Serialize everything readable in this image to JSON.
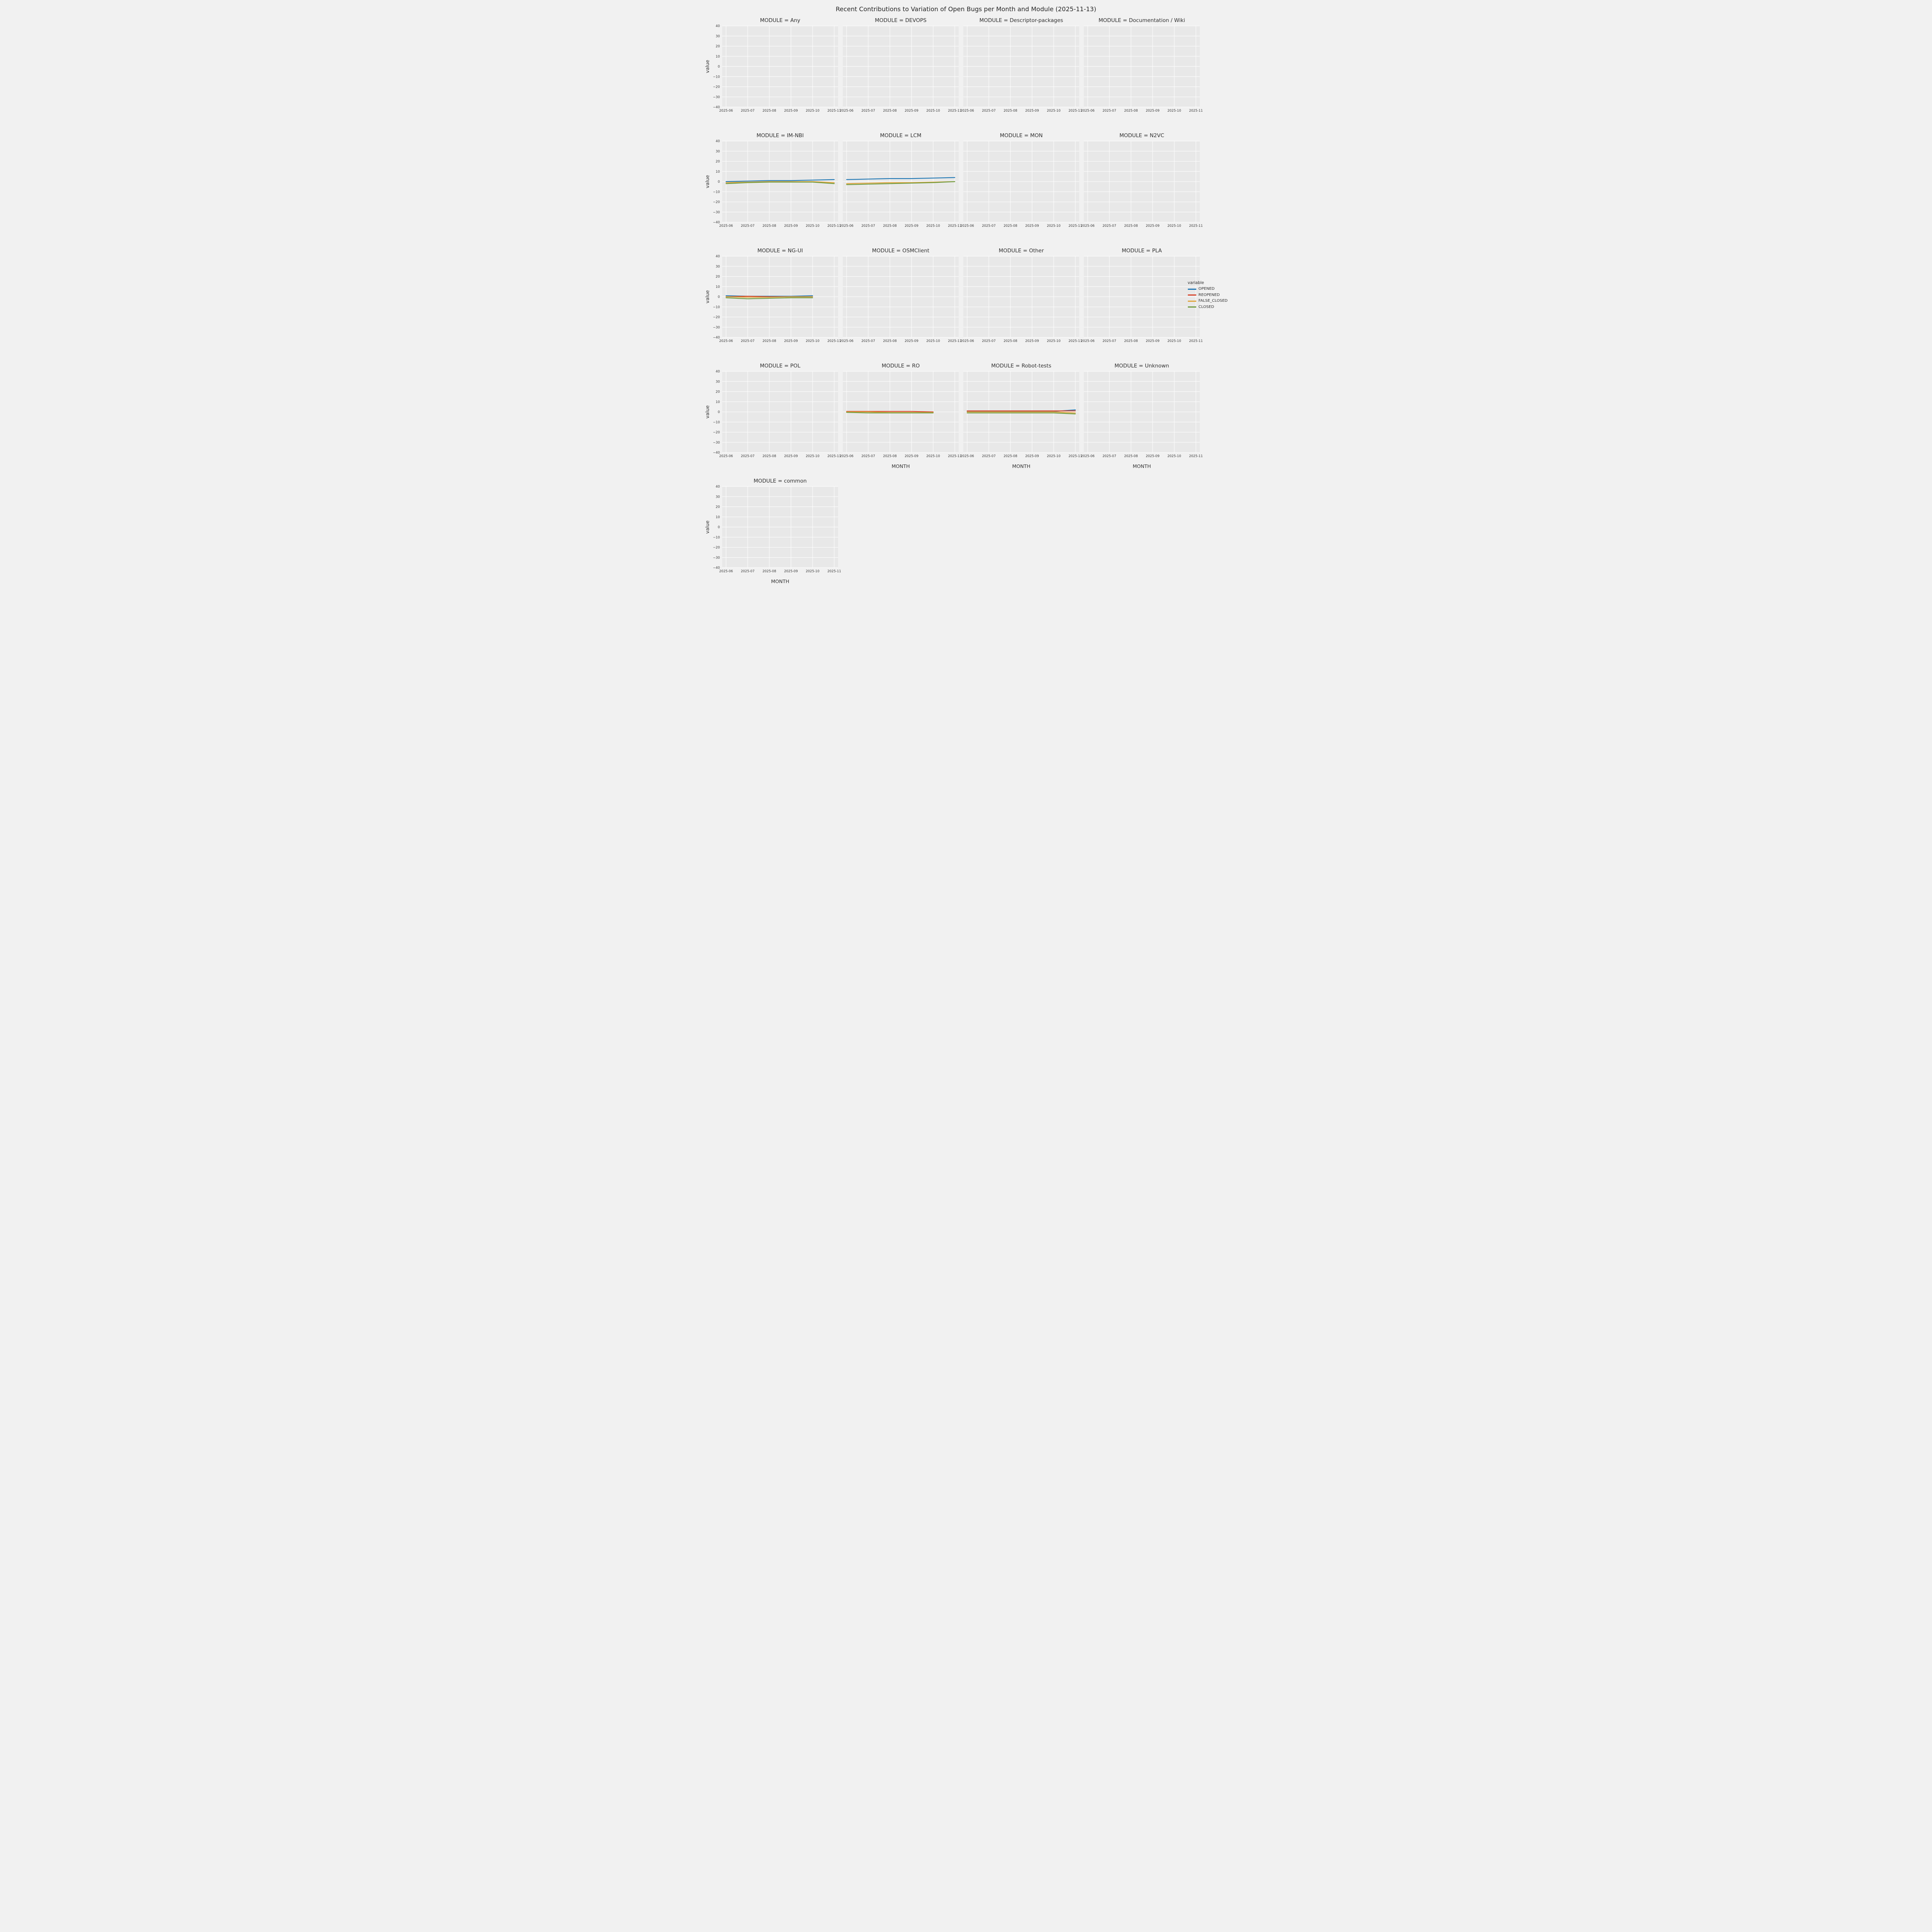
{
  "figure": {
    "background": "#f1f1f1",
    "panel_background": "#e8e8e8",
    "grid_color": "#ffffff"
  },
  "chart_data": {
    "type": "line",
    "title": "Recent Contributions to Variation of Open Bugs per Month and Module (2025-11-13)",
    "xlabel": "MONTH",
    "ylabel": "value",
    "x_ticks": [
      "2025-06",
      "2025-07",
      "2025-08",
      "2025-09",
      "2025-10",
      "2025-11"
    ],
    "ylim": [
      -40,
      40
    ],
    "y_ticks": [
      40,
      30,
      20,
      10,
      0,
      -10,
      -20,
      -30,
      -40
    ],
    "grid": true,
    "legend": {
      "title": "variable",
      "position": "right",
      "entries": [
        {
          "name": "OPENED",
          "color": "#1f77b4"
        },
        {
          "name": "REOPENED",
          "color": "#d7442c"
        },
        {
          "name": "FALSE_CLOSED",
          "color": "#e0a33b"
        },
        {
          "name": "CLOSED",
          "color": "#6f9b3f"
        }
      ]
    },
    "facets": [
      {
        "module": "Any",
        "title": "MODULE = Any",
        "series": []
      },
      {
        "module": "DEVOPS",
        "title": "MODULE = DEVOPS",
        "series": []
      },
      {
        "module": "Descriptor-packages",
        "title": "MODULE = Descriptor-packages",
        "series": []
      },
      {
        "module": "Documentation / Wiki",
        "title": "MODULE = Documentation / Wiki",
        "series": []
      },
      {
        "module": "IM-NBI",
        "title": "MODULE = IM-NBI",
        "series": [
          {
            "name": "OPENED",
            "x": [
              "2025-06",
              "2025-07",
              "2025-08",
              "2025-09",
              "2025-10",
              "2025-11"
            ],
            "y": [
              0,
              0.5,
              1,
              1,
              1.5,
              2
            ]
          },
          {
            "name": "FALSE_CLOSED",
            "x": [
              "2025-06",
              "2025-07",
              "2025-08",
              "2025-09",
              "2025-10",
              "2025-11"
            ],
            "y": [
              -1,
              -0.5,
              0,
              0,
              0,
              -1
            ]
          },
          {
            "name": "CLOSED",
            "x": [
              "2025-06",
              "2025-07",
              "2025-08",
              "2025-09",
              "2025-10",
              "2025-11"
            ],
            "y": [
              -2,
              -1,
              -0.5,
              -0.5,
              -0.5,
              -2
            ]
          }
        ]
      },
      {
        "module": "LCM",
        "title": "MODULE = LCM",
        "series": [
          {
            "name": "OPENED",
            "x": [
              "2025-06",
              "2025-07",
              "2025-08",
              "2025-09",
              "2025-10",
              "2025-11"
            ],
            "y": [
              2,
              2.5,
              3,
              3,
              3.5,
              4
            ]
          },
          {
            "name": "FALSE_CLOSED",
            "x": [
              "2025-06",
              "2025-07",
              "2025-08",
              "2025-09",
              "2025-10",
              "2025-11"
            ],
            "y": [
              -2,
              -1.5,
              -1,
              -1,
              -0.5,
              0
            ]
          },
          {
            "name": "CLOSED",
            "x": [
              "2025-06",
              "2025-07",
              "2025-08",
              "2025-09",
              "2025-10",
              "2025-11"
            ],
            "y": [
              -3,
              -2.5,
              -2,
              -1.5,
              -1,
              0
            ]
          }
        ]
      },
      {
        "module": "MON",
        "title": "MODULE = MON",
        "series": []
      },
      {
        "module": "N2VC",
        "title": "MODULE = N2VC",
        "series": []
      },
      {
        "module": "NG-UI",
        "title": "MODULE = NG-UI",
        "series": [
          {
            "name": "OPENED",
            "x": [
              "2025-06",
              "2025-07",
              "2025-08",
              "2025-09",
              "2025-10"
            ],
            "y": [
              1,
              0.5,
              0.5,
              0.5,
              1
            ]
          },
          {
            "name": "REOPENED",
            "x": [
              "2025-06",
              "2025-07",
              "2025-08",
              "2025-09",
              "2025-10"
            ],
            "y": [
              0,
              0.5,
              0,
              0,
              0
            ]
          },
          {
            "name": "FALSE_CLOSED",
            "x": [
              "2025-06",
              "2025-07",
              "2025-08",
              "2025-09",
              "2025-10"
            ],
            "y": [
              0,
              -0.5,
              -0.5,
              0,
              0
            ]
          },
          {
            "name": "CLOSED",
            "x": [
              "2025-06",
              "2025-07",
              "2025-08",
              "2025-09",
              "2025-10"
            ],
            "y": [
              -1,
              -2,
              -1.5,
              -1,
              -1
            ]
          }
        ]
      },
      {
        "module": "OSMClient",
        "title": "MODULE = OSMClient",
        "series": []
      },
      {
        "module": "Other",
        "title": "MODULE = Other",
        "series": []
      },
      {
        "module": "PLA",
        "title": "MODULE = PLA",
        "series": []
      },
      {
        "module": "POL",
        "title": "MODULE = POL",
        "series": []
      },
      {
        "module": "RO",
        "title": "MODULE = RO",
        "series": [
          {
            "name": "REOPENED",
            "x": [
              "2025-06",
              "2025-07",
              "2025-08",
              "2025-09",
              "2025-10"
            ],
            "y": [
              0.5,
              0.5,
              0.5,
              0.5,
              0
            ]
          },
          {
            "name": "FALSE_CLOSED",
            "x": [
              "2025-06",
              "2025-07",
              "2025-08",
              "2025-09",
              "2025-10"
            ],
            "y": [
              0,
              0,
              -0.5,
              -0.5,
              -0.5
            ]
          },
          {
            "name": "CLOSED",
            "x": [
              "2025-06",
              "2025-07",
              "2025-08",
              "2025-09",
              "2025-10"
            ],
            "y": [
              -0.5,
              -1,
              -1,
              -1,
              -1
            ]
          }
        ]
      },
      {
        "module": "Robot-tests",
        "title": "MODULE = Robot-tests",
        "series": [
          {
            "name": "OPENED",
            "x": [
              "2025-06",
              "2025-07",
              "2025-08",
              "2025-09",
              "2025-10",
              "2025-11"
            ],
            "y": [
              0.5,
              0.5,
              0.5,
              0.5,
              0.5,
              2
            ]
          },
          {
            "name": "REOPENED",
            "x": [
              "2025-06",
              "2025-07",
              "2025-08",
              "2025-09",
              "2025-10",
              "2025-11"
            ],
            "y": [
              1,
              1,
              1,
              1,
              1,
              1
            ]
          },
          {
            "name": "FALSE_CLOSED",
            "x": [
              "2025-06",
              "2025-07",
              "2025-08",
              "2025-09",
              "2025-10",
              "2025-11"
            ],
            "y": [
              0,
              0,
              0,
              0,
              0,
              -1
            ]
          },
          {
            "name": "CLOSED",
            "x": [
              "2025-06",
              "2025-07",
              "2025-08",
              "2025-09",
              "2025-10",
              "2025-11"
            ],
            "y": [
              -1,
              -1,
              -1,
              -1,
              -1,
              -2
            ]
          }
        ]
      },
      {
        "module": "Unknown",
        "title": "MODULE = Unknown",
        "series": []
      },
      {
        "module": "common",
        "title": "MODULE = common",
        "series": []
      }
    ]
  }
}
